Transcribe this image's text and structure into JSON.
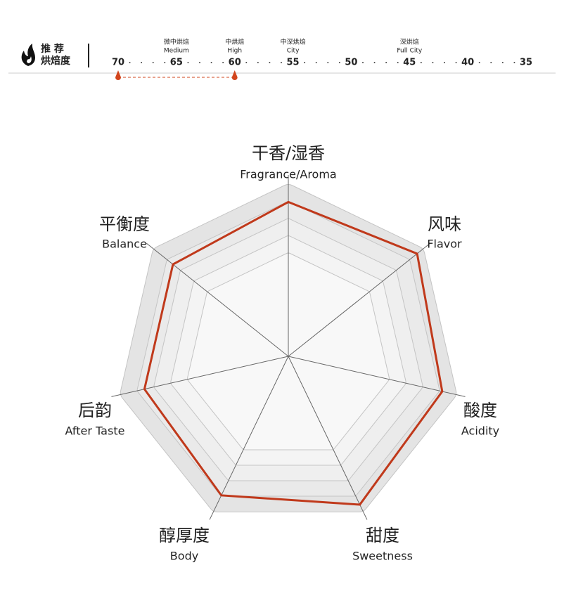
{
  "chart_data": [
    {
      "type": "scale",
      "title_lines": [
        "推 荐",
        "烘焙度"
      ],
      "xlim": [
        70,
        35
      ],
      "xticks": [
        70,
        65,
        60,
        55,
        50,
        45,
        40,
        35
      ],
      "minor_xticks": [
        69,
        68,
        67,
        66,
        64,
        63,
        62,
        61,
        59,
        58,
        57,
        56,
        54,
        53,
        52,
        51,
        49,
        48,
        47,
        46,
        44,
        43,
        42,
        41,
        39,
        38,
        37,
        36
      ],
      "tick_labels": [
        {
          "value": 65,
          "label": "微中烘焙",
          "sublabel": "Medium"
        },
        {
          "value": 60,
          "label": "中烘焙",
          "sublabel": "High"
        },
        {
          "value": 55,
          "label": "中深烘焙",
          "sublabel": "City"
        },
        {
          "value": 45,
          "label": "深烘焙",
          "sublabel": "Full City"
        }
      ],
      "range": [
        70,
        60
      ],
      "color": "#d2451c"
    },
    {
      "type": "radar",
      "axes": [
        {
          "label": "干香/湿香",
          "sublabel": "Fragrance/Aroma"
        },
        {
          "label": "风味",
          "sublabel": "Flavor"
        },
        {
          "label": "酸度",
          "sublabel": "Acidity"
        },
        {
          "label": "甜度",
          "sublabel": "Sweetness"
        },
        {
          "label": "醇厚度",
          "sublabel": "Body"
        },
        {
          "label": "后韵",
          "sublabel": "After Taste"
        },
        {
          "label": "平衡度",
          "sublabel": "Balance"
        }
      ],
      "values": [
        4.5,
        4.8,
        4.6,
        4.8,
        4.5,
        4.3,
        4.3
      ],
      "rlim": [
        0,
        5
      ],
      "rticks": [
        3,
        3.5,
        4,
        4.5,
        5
      ],
      "color": "#c0391b"
    }
  ]
}
